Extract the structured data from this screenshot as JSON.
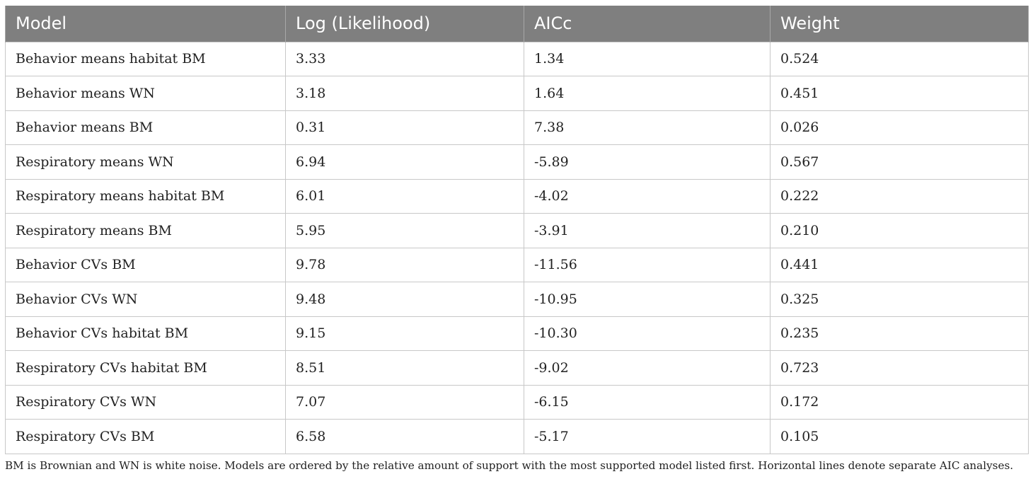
{
  "table": {
    "headers": [
      "Model",
      "Log (Likelihood)",
      "AICc",
      "Weight"
    ],
    "rows": [
      [
        "Behavior means habitat BM",
        "3.33",
        "1.34",
        "0.524"
      ],
      [
        "Behavior means WN",
        "3.18",
        "1.64",
        "0.451"
      ],
      [
        "Behavior means BM",
        "0.31",
        "7.38",
        "0.026"
      ],
      [
        "Respiratory means WN",
        "6.94",
        "-5.89",
        "0.567"
      ],
      [
        "Respiratory means habitat BM",
        "6.01",
        "-4.02",
        "0.222"
      ],
      [
        "Respiratory means BM",
        "5.95",
        "-3.91",
        "0.210"
      ],
      [
        "Behavior CVs BM",
        "9.78",
        "-11.56",
        "0.441"
      ],
      [
        "Behavior CVs WN",
        "9.48",
        "-10.95",
        "0.325"
      ],
      [
        "Behavior CVs habitat BM",
        "9.15",
        "-10.30",
        "0.235"
      ],
      [
        "Respiratory CVs habitat BM",
        "8.51",
        "-9.02",
        "0.723"
      ],
      [
        "Respiratory CVs WN",
        "7.07",
        "-6.15",
        "0.172"
      ],
      [
        "Respiratory CVs BM",
        "6.58",
        "-5.17",
        "0.105"
      ]
    ]
  },
  "footnote": "BM is Brownian and WN is white noise. Models are ordered by the relative amount of support with the most supported model listed first. Horizontal lines denote separate AIC analyses."
}
